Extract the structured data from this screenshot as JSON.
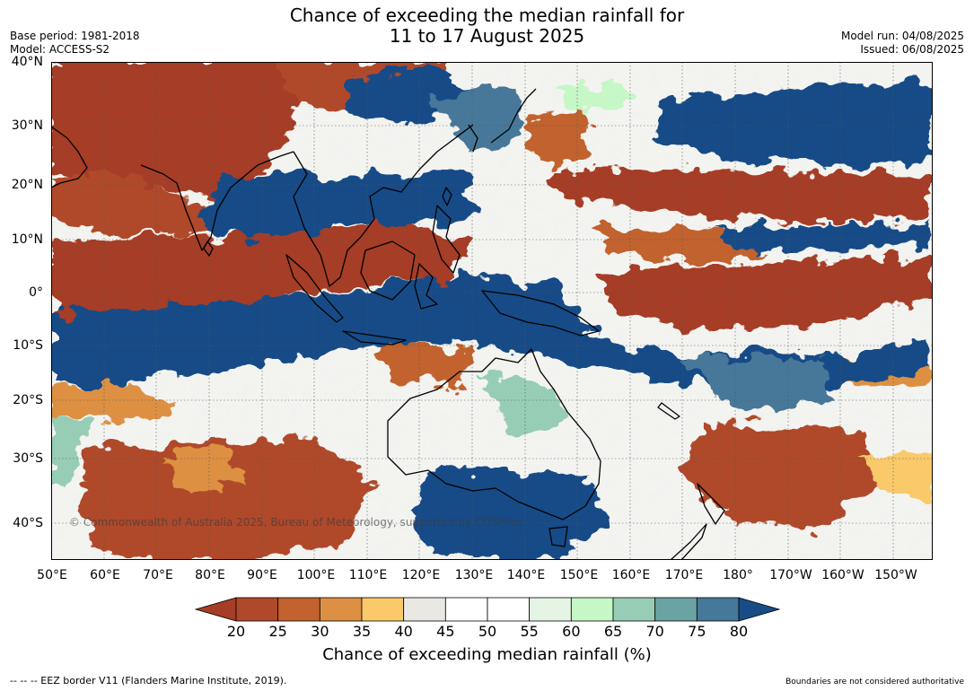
{
  "title": {
    "line1": "Chance of exceeding the median rainfall for",
    "line2": "11 to 17 August 2025"
  },
  "meta": {
    "base_period": "Base period: 1981-2018",
    "model": "Model: ACCESS-S2",
    "model_run": "Model run: 04/08/2025",
    "issued": "Issued: 06/08/2025"
  },
  "map": {
    "lat_labels": [
      "40°N",
      "30°N",
      "20°N",
      "10°N",
      "0°",
      "10°S",
      "20°S",
      "30°S",
      "40°S"
    ],
    "lon_labels": [
      "50°E",
      "60°E",
      "70°E",
      "80°E",
      "90°E",
      "100°E",
      "110°E",
      "120°E",
      "130°E",
      "140°E",
      "150°E",
      "160°E",
      "170°E",
      "180°",
      "170°W",
      "160°W",
      "150°W"
    ],
    "copyright": "© Commonwealth of Australia 2025, Bureau of Meteorology, supported by COSPPac"
  },
  "colorbar": {
    "ticks": [
      "20",
      "25",
      "30",
      "35",
      "40",
      "45",
      "50",
      "55",
      "60",
      "65",
      "70",
      "75",
      "80"
    ],
    "colors": [
      "#a63e27",
      "#b0482a",
      "#c2622f",
      "#dd9043",
      "#f9c96a",
      "#eae8e3",
      "#ffffff",
      "#ffffff",
      "#e6f4e6",
      "#c6f7c6",
      "#97cdb5",
      "#6aa3a3",
      "#46789a",
      "#184c87"
    ],
    "label": "Chance of exceeding median rainfall (%)"
  },
  "footer": {
    "left": "--  --  -- EEZ border V11 (Flanders Marine Institute, 2019).",
    "right": "Boundaries are not considered authoritative"
  }
}
